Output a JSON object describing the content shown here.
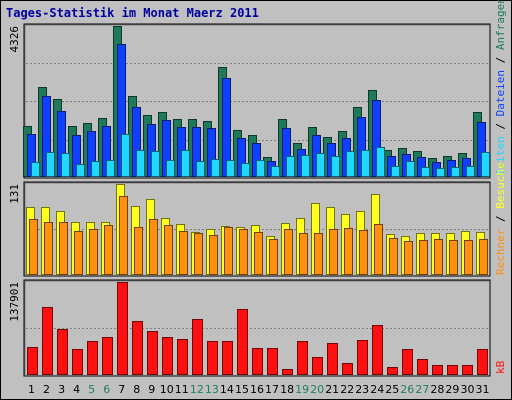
{
  "title": "Tages-Statistik im Monat Maerz 2011",
  "colors": {
    "background": "#c0c0c0",
    "panel": "#c0c0c0",
    "anfragen": "#1f7a5a",
    "dateien": "#1040ff",
    "seiten": "#20d8ff",
    "besuche": "#ffff20",
    "rechner": "#ff9010",
    "kb": "#ff1010",
    "weekday_label": "#000000",
    "weekend_label": "#208060",
    "title": "#0000a0"
  },
  "legend": {
    "top": {
      "anfragen": "Anfragen",
      "dateien": "Dateien",
      "seiten": "Seiten",
      "sep": "/"
    },
    "middle": {
      "besuche": "Besuche",
      "rechner": "Rechner",
      "sep": "/"
    },
    "bottom": {
      "kb": "kB"
    }
  },
  "chart_data": [
    {
      "type": "bar",
      "panel": "top",
      "ymax_label": "4326",
      "ylim": [
        0,
        4326
      ],
      "categories": [
        "1",
        "2",
        "3",
        "4",
        "5",
        "6",
        "7",
        "8",
        "9",
        "10",
        "11",
        "12",
        "13",
        "14",
        "15",
        "16",
        "17",
        "18",
        "19",
        "20",
        "21",
        "22",
        "23",
        "24",
        "25",
        "26",
        "27",
        "28",
        "29",
        "30",
        "31"
      ],
      "weekend_days": [
        "5",
        "6",
        "12",
        "13",
        "19",
        "20",
        "26",
        "27"
      ],
      "series": [
        {
          "name": "Anfragen",
          "values": [
            1430,
            2580,
            2230,
            1450,
            1520,
            1660,
            4326,
            2320,
            1760,
            1860,
            1650,
            1640,
            1590,
            3130,
            1320,
            1180,
            560,
            1640,
            960,
            1400,
            1120,
            1300,
            1990,
            2470,
            760,
            820,
            720,
            520,
            590,
            650,
            1850
          ]
        },
        {
          "name": "Dateien",
          "values": [
            1210,
            2300,
            1870,
            1190,
            1290,
            1450,
            3820,
            2000,
            1500,
            1610,
            1420,
            1410,
            1380,
            2840,
            1110,
            950,
            430,
            1380,
            780,
            1190,
            940,
            1100,
            1690,
            2180,
            590,
            630,
            550,
            410,
            460,
            520,
            1560
          ]
        },
        {
          "name": "Seiten",
          "values": [
            400,
            690,
            660,
            350,
            430,
            470,
            1200,
            740,
            710,
            460,
            740,
            440,
            480,
            450,
            370,
            470,
            290,
            570,
            600,
            660,
            590,
            710,
            760,
            840,
            290,
            430,
            260,
            230,
            250,
            290,
            690
          ]
        }
      ]
    },
    {
      "type": "bar",
      "panel": "middle",
      "ymax_label": "131",
      "ylim": [
        0,
        131
      ],
      "categories": [
        "1",
        "2",
        "3",
        "4",
        "5",
        "6",
        "7",
        "8",
        "9",
        "10",
        "11",
        "12",
        "13",
        "14",
        "15",
        "16",
        "17",
        "18",
        "19",
        "20",
        "21",
        "22",
        "23",
        "24",
        "25",
        "26",
        "27",
        "28",
        "29",
        "30",
        "31"
      ],
      "series": [
        {
          "name": "Besuche",
          "values": [
            97,
            97,
            92,
            75,
            76,
            75,
            131,
            99,
            109,
            82,
            73,
            61,
            66,
            70,
            68,
            72,
            56,
            74,
            81,
            103,
            97,
            88,
            92,
            117,
            58,
            56,
            60,
            60,
            59,
            62,
            61
          ]
        },
        {
          "name": "Rechner",
          "values": [
            80,
            76,
            76,
            62,
            66,
            71,
            113,
            68,
            80,
            72,
            62,
            60,
            57,
            69,
            66,
            61,
            51,
            66,
            60,
            60,
            65,
            67,
            64,
            73,
            52,
            48,
            49,
            51,
            50,
            49,
            51
          ]
        }
      ]
    },
    {
      "type": "bar",
      "panel": "bottom",
      "ymax_label": "137901",
      "ylim": [
        0,
        137901
      ],
      "categories": [
        "1",
        "2",
        "3",
        "4",
        "5",
        "6",
        "7",
        "8",
        "9",
        "10",
        "11",
        "12",
        "13",
        "14",
        "15",
        "16",
        "17",
        "18",
        "19",
        "20",
        "21",
        "22",
        "23",
        "24",
        "25",
        "26",
        "27",
        "28",
        "29",
        "30",
        "31"
      ],
      "series": [
        {
          "name": "kB",
          "values": [
            41000,
            100000,
            67000,
            38000,
            49000,
            55000,
            137901,
            79000,
            64000,
            55000,
            52000,
            82000,
            50000,
            50000,
            98000,
            39000,
            39000,
            7000,
            50000,
            26000,
            46000,
            16000,
            51000,
            74000,
            11000,
            37000,
            22000,
            13000,
            13000,
            13000,
            38000
          ]
        }
      ]
    }
  ]
}
